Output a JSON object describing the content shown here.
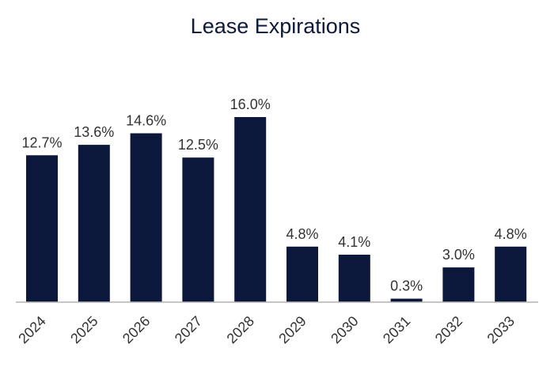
{
  "chart_data": {
    "type": "bar",
    "title": "Lease Expirations",
    "categories": [
      "2024",
      "2025",
      "2026",
      "2027",
      "2028",
      "2029",
      "2030",
      "2031",
      "2032",
      "2033"
    ],
    "values": [
      12.7,
      13.6,
      14.6,
      12.5,
      16.0,
      4.8,
      4.1,
      0.3,
      3.0,
      4.8
    ],
    "value_labels": [
      "12.7%",
      "13.6%",
      "14.6%",
      "12.5%",
      "16.0%",
      "4.8%",
      "4.1%",
      "0.3%",
      "3.0%",
      "4.8%"
    ],
    "xlabel": "",
    "ylabel": "",
    "ylim": [
      0,
      16.0
    ],
    "grid": false,
    "legend": "none",
    "colors": {
      "bar": "#0b173b",
      "axis": "#b3b3b3"
    }
  }
}
